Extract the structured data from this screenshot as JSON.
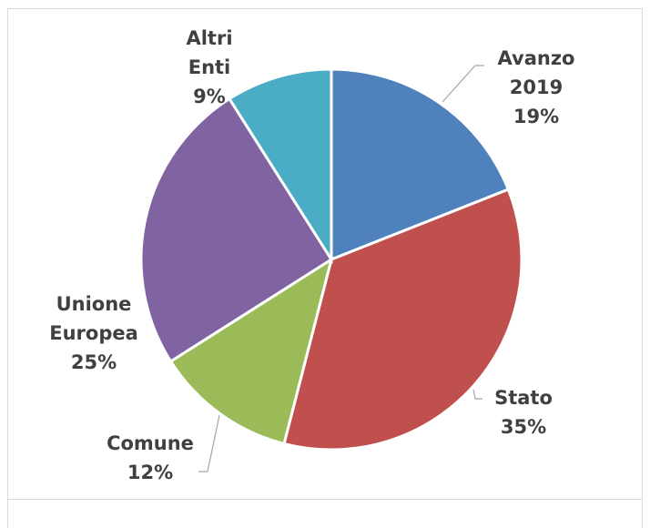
{
  "chart_data": {
    "type": "pie",
    "categories": [
      "Avanzo 2019",
      "Stato",
      "Comune",
      "Unione Europea",
      "Altri Enti"
    ],
    "values": [
      19,
      35,
      12,
      25,
      9
    ],
    "value_labels": [
      "19%",
      "35%",
      "12%",
      "25%",
      "9%"
    ],
    "colors": [
      "#4f81bd",
      "#c0504d",
      "#9bbb59",
      "#8064a2",
      "#4bacc6"
    ]
  }
}
